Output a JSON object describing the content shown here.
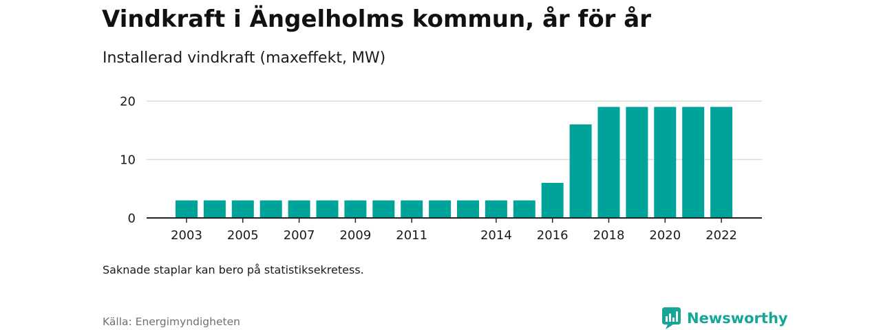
{
  "title": "Vindkraft i Ängelholms kommun, år för år",
  "subtitle": "Installerad vindkraft (maxeffekt, MW)",
  "note": "Saknade staplar kan bero på statistiksekretess.",
  "source": "Källa: Energimyndigheten",
  "brand": "Newsworthy",
  "colors": {
    "bar": "#00a39a",
    "grid": "#dcdcdc",
    "axis": "#222222",
    "brand": "#16a597"
  },
  "chart_data": {
    "type": "bar",
    "categories": [
      "2003",
      "2004",
      "2005",
      "2006",
      "2007",
      "2008",
      "2009",
      "2010",
      "2011",
      "2012",
      "2013",
      "2014",
      "2015",
      "2016",
      "2017",
      "2018",
      "2019",
      "2020",
      "2021",
      "2022"
    ],
    "values": [
      3,
      3,
      3,
      3,
      3,
      3,
      3,
      3,
      3,
      3,
      3,
      3,
      3,
      6,
      16,
      19,
      19,
      19,
      19,
      19
    ],
    "x_tick_labels": [
      "2003",
      "2005",
      "2007",
      "2009",
      "2011",
      "2014",
      "2016",
      "2018",
      "2020",
      "2022"
    ],
    "y_ticks": [
      0,
      10,
      20
    ],
    "ylim": [
      0,
      20
    ],
    "grid": true,
    "legend": "none",
    "xlabel": "",
    "ylabel": ""
  }
}
